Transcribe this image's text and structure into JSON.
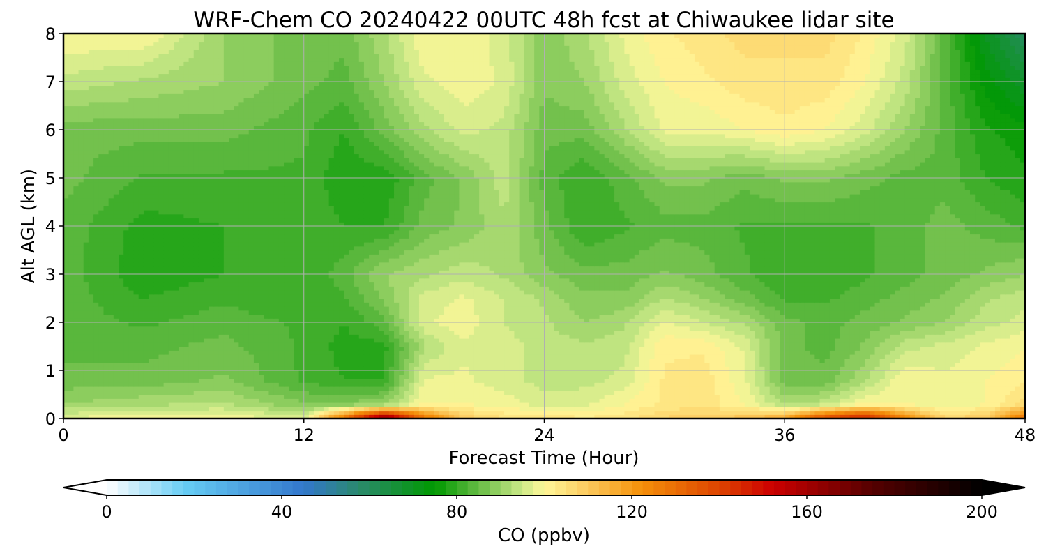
{
  "chart_data": {
    "type": "heatmap",
    "title": "WRF-Chem CO  20240422 00UTC 48h fcst at Chiwaukee lidar site",
    "xlabel": "Forecast Time (Hour)",
    "ylabel": "Alt AGL (km)",
    "xlim": [
      0,
      48
    ],
    "ylim": [
      0,
      8
    ],
    "xticks": [
      0,
      12,
      24,
      36,
      48
    ],
    "yticks": [
      0,
      1,
      2,
      3,
      4,
      5,
      6,
      7,
      8
    ],
    "grid": true,
    "x": [
      0,
      4,
      8,
      12,
      14,
      16,
      18,
      20,
      22,
      24,
      26,
      28,
      30,
      32,
      34,
      36,
      38,
      40,
      42,
      44,
      46,
      48
    ],
    "y": [
      0,
      0.3,
      0.8,
      1.5,
      2,
      2.5,
      3,
      4,
      5,
      6,
      7,
      8
    ],
    "z": [
      [
        98,
        100,
        100,
        96,
        130,
        170,
        130,
        110,
        105,
        105,
        103,
        104,
        108,
        110,
        112,
        118,
        140,
        150,
        125,
        108,
        110,
        130
      ],
      [
        90,
        92,
        93,
        88,
        88,
        90,
        100,
        100,
        99,
        96,
        97,
        100,
        103,
        104,
        100,
        92,
        94,
        100,
        100,
        98,
        100,
        106
      ],
      [
        86,
        86,
        88,
        82,
        80,
        80,
        98,
        98,
        96,
        94,
        94,
        96,
        103,
        104,
        98,
        86,
        86,
        92,
        100,
        98,
        100,
        102
      ],
      [
        84,
        84,
        86,
        82,
        79,
        79,
        92,
        97,
        96,
        94,
        93,
        94,
        102,
        102,
        97,
        86,
        84,
        88,
        94,
        96,
        98,
        100
      ],
      [
        84,
        82,
        84,
        82,
        80,
        84,
        97,
        99,
        95,
        93,
        90,
        92,
        98,
        95,
        92,
        86,
        84,
        86,
        88,
        90,
        94,
        96
      ],
      [
        84,
        80,
        82,
        80,
        82,
        88,
        96,
        98,
        95,
        92,
        88,
        88,
        93,
        90,
        86,
        82,
        82,
        84,
        86,
        88,
        92,
        94
      ],
      [
        84,
        78,
        80,
        80,
        84,
        90,
        92,
        94,
        92,
        88,
        86,
        86,
        88,
        86,
        83,
        80,
        80,
        82,
        84,
        86,
        88,
        90
      ],
      [
        84,
        79,
        80,
        82,
        80,
        80,
        86,
        88,
        92,
        86,
        80,
        82,
        84,
        84,
        82,
        82,
        82,
        82,
        84,
        86,
        84,
        82
      ],
      [
        86,
        82,
        82,
        82,
        78,
        78,
        84,
        88,
        94,
        84,
        80,
        84,
        88,
        88,
        86,
        88,
        88,
        86,
        84,
        84,
        80,
        78
      ],
      [
        86,
        86,
        86,
        83,
        80,
        86,
        92,
        96,
        94,
        86,
        86,
        92,
        98,
        98,
        100,
        102,
        100,
        96,
        90,
        84,
        78,
        76
      ],
      [
        94,
        92,
        90,
        86,
        84,
        90,
        97,
        99,
        97,
        88,
        90,
        96,
        100,
        102,
        104,
        104,
        104,
        100,
        94,
        84,
        74,
        68
      ],
      [
        100,
        100,
        90,
        86,
        86,
        92,
        100,
        100,
        96,
        88,
        92,
        98,
        102,
        104,
        106,
        106,
        106,
        102,
        96,
        84,
        70,
        60
      ]
    ],
    "colorbar": {
      "label": "CO  (ppbv)",
      "min": 0,
      "max": 200,
      "ticks": [
        0,
        40,
        80,
        120,
        160,
        200
      ],
      "extend": "both",
      "stops": [
        {
          "v": 0,
          "color": "#ffffff"
        },
        {
          "v": 18,
          "color": "#66ccf4"
        },
        {
          "v": 45,
          "color": "#3377cc"
        },
        {
          "v": 58,
          "color": "#2a8a6a"
        },
        {
          "v": 75,
          "color": "#009900"
        },
        {
          "v": 85,
          "color": "#66bb44"
        },
        {
          "v": 95,
          "color": "#ccea88"
        },
        {
          "v": 100,
          "color": "#fff799"
        },
        {
          "v": 108,
          "color": "#fdd36a"
        },
        {
          "v": 122,
          "color": "#f5900a"
        },
        {
          "v": 140,
          "color": "#dd4400"
        },
        {
          "v": 152,
          "color": "#cc0000"
        },
        {
          "v": 175,
          "color": "#550000"
        },
        {
          "v": 200,
          "color": "#000000"
        }
      ]
    }
  }
}
